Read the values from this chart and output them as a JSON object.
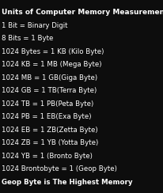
{
  "title": "Units of Computer Memory Measurements",
  "lines": [
    "1 Bit = Binary Digit",
    "8 Bits = 1 Byte",
    "1024 Bytes = 1 KB (Kilo Byte)",
    "1024 KB = 1 MB (Mega Byte)",
    "1024 MB = 1 GB(Giga Byte)",
    "1024 GB = 1 TB(Terra Byte)",
    "1024 TB = 1 PB(Peta Byte)",
    "1024 PB = 1 EB(Exa Byte)",
    "1024 EB = 1 ZB(Zetta Byte)",
    "1024 ZB = 1 YB (Yotta Byte)",
    "1024 YB = 1 (Bronto Byte)",
    "1024 Brontobyte = 1 (Geop Byte)",
    "Geop Byte is The Highest Memory"
  ],
  "bg_color": "#0d0d0d",
  "title_color": "#ffffff",
  "text_color": "#ffffff",
  "title_fontsize": 6.5,
  "text_fontsize": 6.2,
  "last_line_bold": true
}
